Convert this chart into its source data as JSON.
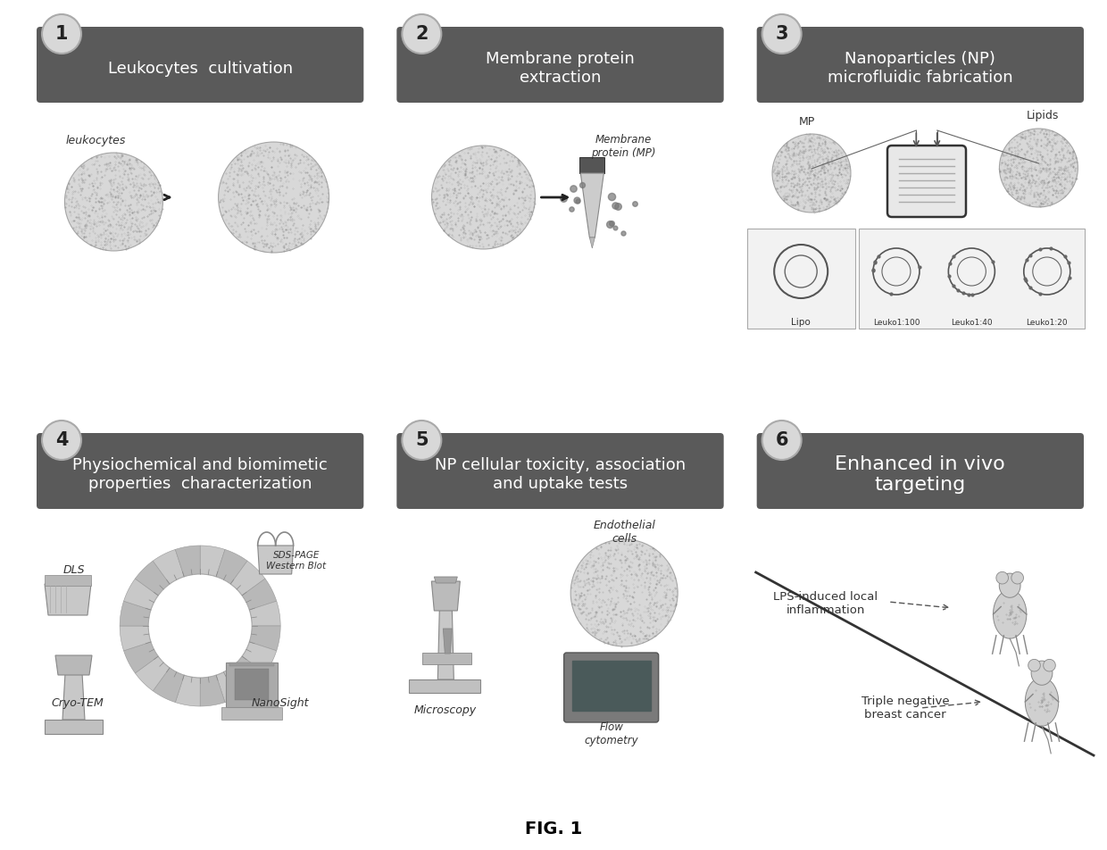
{
  "title": "FIG. 1",
  "background_color": "#ffffff",
  "header_bg_color": "#5a5a5a",
  "header_text_color": "#ffffff",
  "circle_bg_color": "#d8d8d8",
  "circle_border_color": "#aaaaaa",
  "steps": [
    {
      "number": "1",
      "title": "Leukocytes  cultivation",
      "col": 0,
      "row": 0
    },
    {
      "number": "2",
      "title": "Membrane protein\nextraction",
      "col": 1,
      "row": 0
    },
    {
      "number": "3",
      "title": "Nanoparticles (NP)\nmicrofluidic fabrication",
      "col": 2,
      "row": 0
    },
    {
      "number": "4",
      "title": "Physiochemical and biomimetic\nproperties  characterization",
      "col": 0,
      "row": 1
    },
    {
      "number": "5",
      "title": "NP cellular toxicity, association\nand uptake tests",
      "col": 1,
      "row": 1
    },
    {
      "number": "6",
      "title": "Enhanced in vivo\ntargeting",
      "col": 2,
      "row": 1
    }
  ]
}
